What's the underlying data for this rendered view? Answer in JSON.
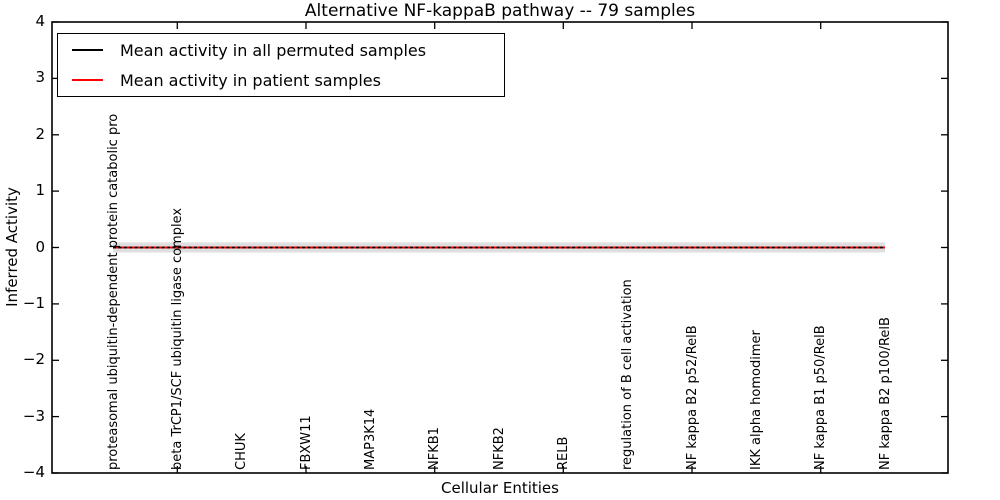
{
  "title": "Alternative NF-kappaB pathway -- 79 samples",
  "legend": {
    "items": [
      {
        "label": "Mean activity in all permuted samples",
        "color": "#000000"
      },
      {
        "label": "Mean activity in patient samples",
        "color": "#ff0000"
      }
    ]
  },
  "chart_data": {
    "type": "line",
    "title": "Alternative NF-kappaB pathway -- 79 samples",
    "xlabel": "Cellular Entities",
    "ylabel": "Inferred Activity",
    "ylim": [
      -4,
      4
    ],
    "yticks": [
      4,
      3,
      2,
      1,
      0,
      -1,
      -2,
      -3,
      -4
    ],
    "grid": false,
    "legend_position": "upper left",
    "categories": [
      "proteasomal ubiquitin-dependent protein catabolic pro",
      "beta TrCP1/SCF ubiquitin ligase complex",
      "CHUK",
      "FBXW11",
      "MAP3K14",
      "NFKB1",
      "NFKB2",
      "RELB",
      "regulation of B cell activation",
      "NF kappa B2 p52/RelB",
      "IKK alpha homodimer",
      "NF kappa B1 p50/RelB",
      "NF kappa B2 p100/RelB"
    ],
    "series": [
      {
        "name": "Mean activity in all permuted samples",
        "color": "#000000",
        "style": "dashed",
        "values": [
          0,
          0,
          0,
          0,
          0,
          0,
          0,
          0,
          0,
          0,
          0,
          0,
          0
        ]
      },
      {
        "name": "Mean activity in patient samples",
        "color": "#ff0000",
        "style": "solid",
        "values": [
          0,
          0,
          0,
          0,
          0,
          0,
          0,
          0,
          0,
          0,
          0,
          0,
          0
        ]
      }
    ],
    "band": {
      "center": 0,
      "halfwidth": 0.09,
      "color": "#dfdfdf"
    }
  }
}
